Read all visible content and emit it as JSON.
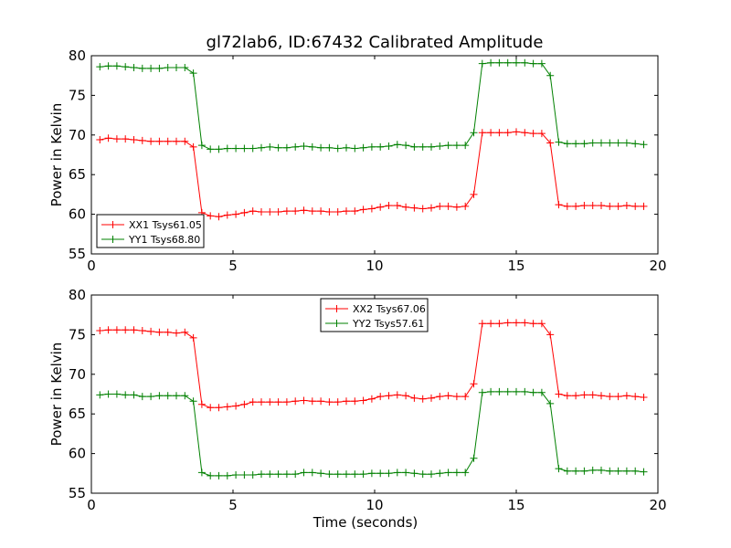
{
  "title": "gl72lab6, ID:67432 Calibrated Amplitude",
  "colors": {
    "red": "#ff0000",
    "green": "#008000"
  },
  "chart_data": [
    {
      "type": "line",
      "title": "gl72lab6, ID:67432 Calibrated Amplitude",
      "xlabel": "",
      "ylabel": "Power in Kelvin",
      "xlim": [
        0,
        20
      ],
      "ylim": [
        55,
        80
      ],
      "xticks": [
        "0",
        "5",
        "10",
        "15",
        "20"
      ],
      "yticks": [
        "55",
        "60",
        "65",
        "70",
        "75",
        "80"
      ],
      "legend_position": "lower-left",
      "grid": false,
      "x": [
        0.3,
        0.6,
        0.9,
        1.2,
        1.5,
        1.8,
        2.1,
        2.4,
        2.7,
        3.0,
        3.3,
        3.6,
        3.9,
        4.2,
        4.5,
        4.8,
        5.1,
        5.4,
        5.7,
        6.0,
        6.3,
        6.6,
        6.9,
        7.2,
        7.5,
        7.8,
        8.1,
        8.4,
        8.7,
        9.0,
        9.3,
        9.6,
        9.9,
        10.2,
        10.5,
        10.8,
        11.1,
        11.4,
        11.7,
        12.0,
        12.3,
        12.6,
        12.9,
        13.2,
        13.5,
        13.8,
        14.1,
        14.4,
        14.7,
        15.0,
        15.3,
        15.6,
        15.9,
        16.2,
        16.5,
        16.8,
        17.1,
        17.4,
        17.7,
        18.0,
        18.3,
        18.6,
        18.9,
        19.2,
        19.5
      ],
      "series": [
        {
          "name": "XX1 Tsys61.05",
          "color": "#ff0000",
          "values": [
            69.4,
            69.6,
            69.5,
            69.5,
            69.4,
            69.3,
            69.2,
            69.2,
            69.2,
            69.2,
            69.2,
            68.5,
            60.2,
            59.8,
            59.7,
            59.9,
            60.0,
            60.2,
            60.4,
            60.3,
            60.3,
            60.3,
            60.4,
            60.4,
            60.5,
            60.4,
            60.4,
            60.3,
            60.3,
            60.4,
            60.4,
            60.6,
            60.7,
            60.9,
            61.1,
            61.1,
            60.9,
            60.8,
            60.7,
            60.8,
            61.0,
            61.0,
            60.9,
            61.0,
            62.5,
            70.3,
            70.3,
            70.3,
            70.3,
            70.4,
            70.3,
            70.2,
            70.2,
            69.0,
            61.2,
            61.0,
            61.0,
            61.1,
            61.1,
            61.1,
            61.0,
            61.0,
            61.1,
            61.0,
            61.0
          ]
        },
        {
          "name": "YY1 Tsys68.80",
          "color": "#008000",
          "values": [
            78.6,
            78.7,
            78.7,
            78.6,
            78.5,
            78.4,
            78.4,
            78.4,
            78.5,
            78.5,
            78.5,
            77.8,
            68.7,
            68.2,
            68.2,
            68.3,
            68.3,
            68.3,
            68.3,
            68.4,
            68.5,
            68.4,
            68.4,
            68.5,
            68.6,
            68.5,
            68.4,
            68.4,
            68.3,
            68.4,
            68.3,
            68.4,
            68.5,
            68.5,
            68.6,
            68.8,
            68.7,
            68.5,
            68.5,
            68.5,
            68.6,
            68.7,
            68.7,
            68.7,
            70.3,
            79.0,
            79.1,
            79.1,
            79.1,
            79.1,
            79.1,
            79.0,
            79.0,
            77.5,
            69.1,
            68.9,
            68.9,
            68.9,
            69.0,
            69.0,
            69.0,
            69.0,
            69.0,
            68.9,
            68.8
          ]
        }
      ]
    },
    {
      "type": "line",
      "title": "",
      "xlabel": "Time (seconds)",
      "ylabel": "Power in Kelvin",
      "xlim": [
        0,
        20
      ],
      "ylim": [
        55,
        80
      ],
      "xticks": [
        "0",
        "5",
        "10",
        "15",
        "20"
      ],
      "yticks": [
        "55",
        "60",
        "65",
        "70",
        "75",
        "80"
      ],
      "legend_position": "upper-center",
      "grid": false,
      "x": [
        0.3,
        0.6,
        0.9,
        1.2,
        1.5,
        1.8,
        2.1,
        2.4,
        2.7,
        3.0,
        3.3,
        3.6,
        3.9,
        4.2,
        4.5,
        4.8,
        5.1,
        5.4,
        5.7,
        6.0,
        6.3,
        6.6,
        6.9,
        7.2,
        7.5,
        7.8,
        8.1,
        8.4,
        8.7,
        9.0,
        9.3,
        9.6,
        9.9,
        10.2,
        10.5,
        10.8,
        11.1,
        11.4,
        11.7,
        12.0,
        12.3,
        12.6,
        12.9,
        13.2,
        13.5,
        13.8,
        14.1,
        14.4,
        14.7,
        15.0,
        15.3,
        15.6,
        15.9,
        16.2,
        16.5,
        16.8,
        17.1,
        17.4,
        17.7,
        18.0,
        18.3,
        18.6,
        18.9,
        19.2,
        19.5
      ],
      "series": [
        {
          "name": "XX2 Tsys67.06",
          "color": "#ff0000",
          "values": [
            75.5,
            75.6,
            75.6,
            75.6,
            75.6,
            75.5,
            75.4,
            75.3,
            75.3,
            75.2,
            75.3,
            74.6,
            66.2,
            65.8,
            65.8,
            65.9,
            66.0,
            66.2,
            66.5,
            66.5,
            66.5,
            66.5,
            66.5,
            66.6,
            66.7,
            66.6,
            66.6,
            66.5,
            66.5,
            66.6,
            66.6,
            66.7,
            66.9,
            67.2,
            67.3,
            67.4,
            67.3,
            67.0,
            66.9,
            67.0,
            67.2,
            67.3,
            67.2,
            67.2,
            68.8,
            76.4,
            76.4,
            76.4,
            76.5,
            76.5,
            76.5,
            76.4,
            76.4,
            75.0,
            67.5,
            67.3,
            67.3,
            67.4,
            67.4,
            67.3,
            67.2,
            67.2,
            67.3,
            67.2,
            67.1
          ]
        },
        {
          "name": "YY2 Tsys57.61",
          "color": "#008000",
          "values": [
            67.4,
            67.5,
            67.5,
            67.4,
            67.4,
            67.2,
            67.2,
            67.3,
            67.3,
            67.3,
            67.3,
            66.6,
            57.6,
            57.2,
            57.2,
            57.2,
            57.3,
            57.3,
            57.3,
            57.4,
            57.4,
            57.4,
            57.4,
            57.4,
            57.6,
            57.6,
            57.5,
            57.4,
            57.4,
            57.4,
            57.4,
            57.4,
            57.5,
            57.5,
            57.5,
            57.6,
            57.6,
            57.5,
            57.4,
            57.4,
            57.5,
            57.6,
            57.6,
            57.6,
            59.4,
            67.7,
            67.8,
            67.8,
            67.8,
            67.8,
            67.8,
            67.7,
            67.7,
            66.3,
            58.1,
            57.8,
            57.8,
            57.8,
            57.9,
            57.9,
            57.8,
            57.8,
            57.8,
            57.8,
            57.7
          ]
        }
      ]
    }
  ]
}
